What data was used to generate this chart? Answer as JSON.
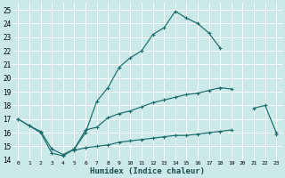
{
  "xlabel": "Humidex (Indice chaleur)",
  "xlim": [
    -0.5,
    23.5
  ],
  "ylim": [
    14,
    25.5
  ],
  "yticks": [
    14,
    15,
    16,
    17,
    18,
    19,
    20,
    21,
    22,
    23,
    24,
    25
  ],
  "xticks": [
    0,
    1,
    2,
    3,
    4,
    5,
    6,
    7,
    8,
    9,
    10,
    11,
    12,
    13,
    14,
    15,
    16,
    17,
    18,
    19,
    20,
    21,
    22,
    23
  ],
  "background_color": "#cce9e9",
  "grid_color": "#b8d8d8",
  "line_color": "#1a6b6b",
  "line1_x": [
    0,
    1,
    2,
    3,
    4,
    5,
    6,
    7,
    8,
    9,
    10,
    11,
    12,
    13,
    14,
    15,
    16,
    17,
    18
  ],
  "line1_y": [
    17.0,
    16.5,
    16.0,
    14.5,
    14.3,
    14.8,
    16.0,
    18.3,
    19.3,
    20.8,
    21.5,
    22.0,
    23.2,
    23.7,
    24.9,
    24.4,
    24.0,
    23.3,
    22.2
  ],
  "line2_x": [
    0,
    1,
    2,
    3,
    4,
    5,
    6,
    7,
    8,
    9,
    10,
    11,
    12,
    13,
    14,
    15,
    16,
    17,
    18,
    19,
    21,
    22,
    23
  ],
  "line2_y": [
    17.0,
    16.5,
    16.1,
    14.8,
    14.4,
    14.8,
    16.2,
    16.4,
    17.1,
    17.4,
    17.6,
    17.9,
    18.2,
    18.4,
    18.6,
    18.8,
    18.9,
    19.1,
    19.3,
    19.2,
    17.8,
    18.0,
    16.0
  ],
  "line2_gaps": [
    19
  ],
  "line3_x": [
    5,
    6,
    7,
    8,
    9,
    10,
    11,
    12,
    13,
    14,
    15,
    16,
    17,
    18,
    19,
    23
  ],
  "line3_y": [
    14.7,
    14.9,
    15.0,
    15.1,
    15.3,
    15.4,
    15.5,
    15.6,
    15.7,
    15.8,
    15.8,
    15.9,
    16.0,
    16.1,
    16.2,
    15.9
  ]
}
